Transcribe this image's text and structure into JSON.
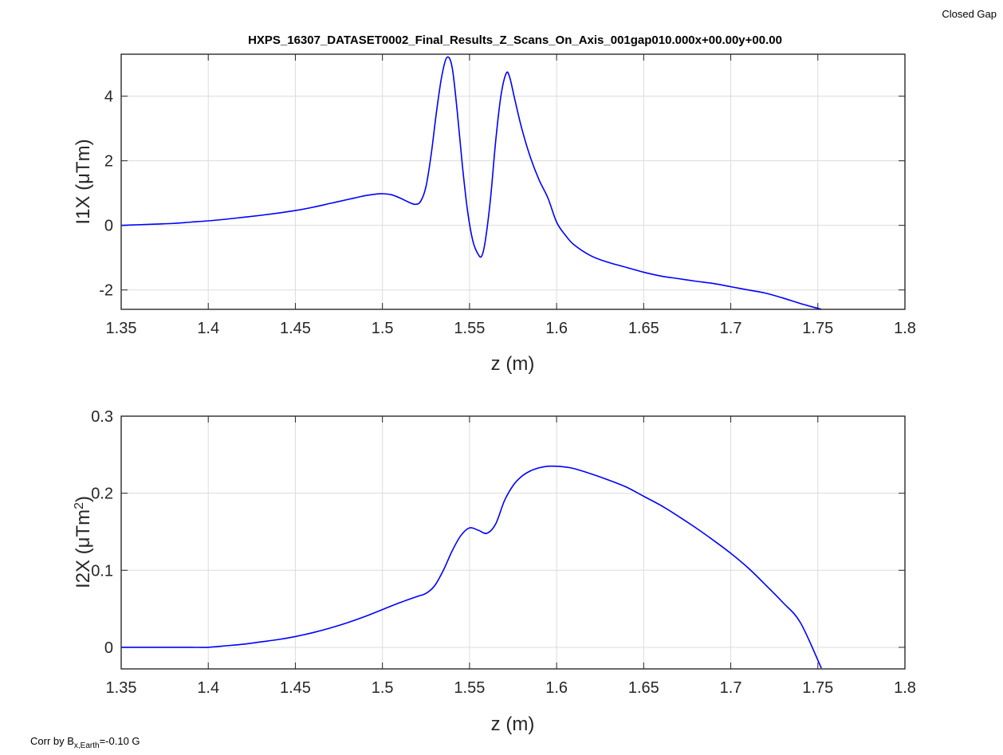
{
  "figure": {
    "top_right_note": "Closed Gap",
    "bottom_left_note": {
      "prefix": "Corr by B",
      "subscript": "x,Earth",
      "suffix": "=-0.10 G"
    },
    "line_color": "#0000ff"
  },
  "chart_data": [
    {
      "type": "line",
      "title": "HXPS_16307_DATASET0002_Final_Results_Z_Scans_On_Axis_001gap010.000x+00.00y+00.00",
      "xlabel": "z (m)",
      "ylabel": "I1X (μTm)",
      "xlim": [
        1.35,
        1.8
      ],
      "ylim": [
        -2.6,
        5.3
      ],
      "xticks": [
        1.35,
        1.4,
        1.45,
        1.5,
        1.55,
        1.6,
        1.65,
        1.7,
        1.75,
        1.8
      ],
      "xtick_labels": [
        "1.35",
        "1.4",
        "1.45",
        "1.5",
        "1.55",
        "1.6",
        "1.65",
        "1.7",
        "1.75",
        "1.8"
      ],
      "yticks": [
        -2,
        0,
        2,
        4
      ],
      "ytick_labels": [
        "-2",
        "0",
        "2",
        "4"
      ],
      "grid": true,
      "series": [
        {
          "color": "#0000ff",
          "x": [
            1.35,
            1.36,
            1.37,
            1.38,
            1.39,
            1.4,
            1.41,
            1.42,
            1.43,
            1.44,
            1.45,
            1.46,
            1.47,
            1.48,
            1.485,
            1.49,
            1.495,
            1.5,
            1.505,
            1.51,
            1.515,
            1.519,
            1.522,
            1.525,
            1.528,
            1.531,
            1.534,
            1.537,
            1.54,
            1.543,
            1.546,
            1.549,
            1.552,
            1.555,
            1.557,
            1.559,
            1.562,
            1.565,
            1.568,
            1.571,
            1.573,
            1.576,
            1.58,
            1.585,
            1.59,
            1.595,
            1.6,
            1.605,
            1.61,
            1.62,
            1.63,
            1.64,
            1.65,
            1.66,
            1.67,
            1.68,
            1.69,
            1.7,
            1.71,
            1.72,
            1.73,
            1.74,
            1.752
          ],
          "y": [
            0.0,
            0.02,
            0.04,
            0.06,
            0.1,
            0.14,
            0.19,
            0.25,
            0.31,
            0.38,
            0.46,
            0.56,
            0.68,
            0.8,
            0.86,
            0.92,
            0.96,
            0.98,
            0.95,
            0.85,
            0.72,
            0.65,
            0.75,
            1.2,
            2.2,
            3.5,
            4.6,
            5.2,
            4.9,
            3.5,
            1.8,
            0.4,
            -0.5,
            -0.9,
            -0.95,
            -0.5,
            0.8,
            2.6,
            4.0,
            4.7,
            4.6,
            3.9,
            3.0,
            2.1,
            1.4,
            0.85,
            0.1,
            -0.3,
            -0.6,
            -0.95,
            -1.15,
            -1.3,
            -1.45,
            -1.57,
            -1.65,
            -1.73,
            -1.8,
            -1.9,
            -2.0,
            -2.1,
            -2.25,
            -2.42,
            -2.6
          ]
        }
      ]
    },
    {
      "type": "line",
      "title": "",
      "xlabel": "z (m)",
      "ylabel": "I2X (μTm²)",
      "xlim": [
        1.35,
        1.8
      ],
      "ylim": [
        -0.028,
        0.3
      ],
      "xticks": [
        1.35,
        1.4,
        1.45,
        1.5,
        1.55,
        1.6,
        1.65,
        1.7,
        1.75,
        1.8
      ],
      "xtick_labels": [
        "1.35",
        "1.4",
        "1.45",
        "1.5",
        "1.55",
        "1.6",
        "1.65",
        "1.7",
        "1.75",
        "1.8"
      ],
      "yticks": [
        0,
        0.1,
        0.2,
        0.3
      ],
      "ytick_labels": [
        "0",
        "0.1",
        "0.2",
        "0.3"
      ],
      "grid": true,
      "series": [
        {
          "color": "#0000ff",
          "x": [
            1.35,
            1.36,
            1.37,
            1.38,
            1.39,
            1.4,
            1.41,
            1.42,
            1.43,
            1.44,
            1.45,
            1.46,
            1.47,
            1.48,
            1.49,
            1.5,
            1.51,
            1.52,
            1.525,
            1.53,
            1.535,
            1.54,
            1.545,
            1.55,
            1.555,
            1.56,
            1.565,
            1.57,
            1.575,
            1.58,
            1.585,
            1.59,
            1.595,
            1.6,
            1.605,
            1.61,
            1.62,
            1.63,
            1.64,
            1.65,
            1.66,
            1.67,
            1.68,
            1.69,
            1.7,
            1.71,
            1.72,
            1.73,
            1.74,
            1.752
          ],
          "y": [
            0.0,
            0.0,
            0.0,
            0.0,
            0.0,
            0.0,
            0.002,
            0.004,
            0.007,
            0.01,
            0.014,
            0.019,
            0.025,
            0.032,
            0.04,
            0.049,
            0.058,
            0.066,
            0.07,
            0.08,
            0.1,
            0.125,
            0.145,
            0.155,
            0.152,
            0.148,
            0.16,
            0.19,
            0.21,
            0.222,
            0.229,
            0.233,
            0.235,
            0.235,
            0.234,
            0.232,
            0.225,
            0.217,
            0.208,
            0.196,
            0.184,
            0.17,
            0.155,
            0.139,
            0.122,
            0.103,
            0.081,
            0.058,
            0.032,
            -0.027
          ]
        }
      ]
    }
  ]
}
